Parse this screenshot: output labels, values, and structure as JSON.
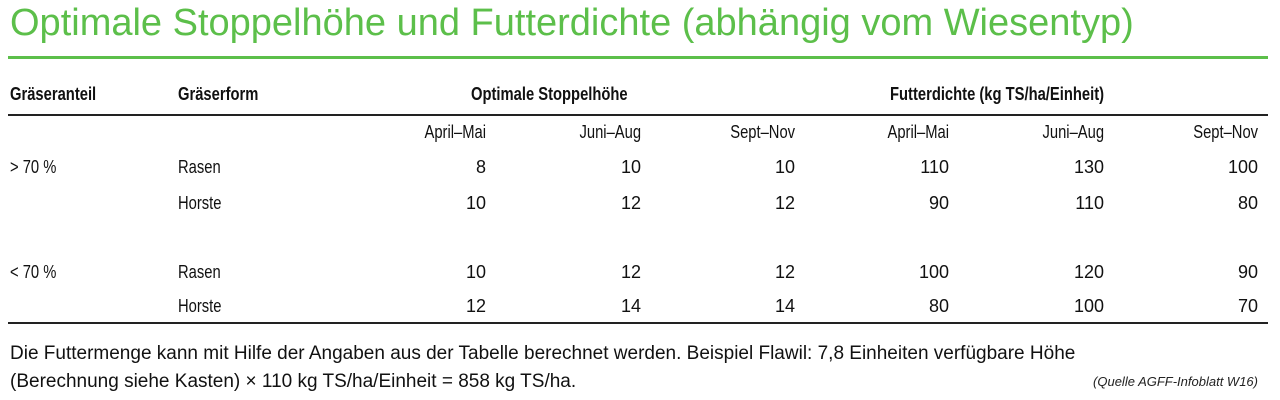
{
  "title": "Optimale Stoppelhöhe und Futterdichte (abhängig vom Wiesentyp)",
  "headers": {
    "col1": "Gräseranteil",
    "col2": "Gräserform",
    "group1": "Optimale Stoppelhöhe",
    "group2": "Futterdichte (kg TS/ha/Einheit)"
  },
  "subheaders": [
    "April–Mai",
    "Juni–Aug",
    "Sept–Nov",
    "April–Mai",
    "Juni–Aug",
    "Sept–Nov"
  ],
  "rows": [
    {
      "anteil": "> 70 %",
      "form": "Rasen",
      "values": [
        "8",
        "10",
        "10",
        "110",
        "130",
        "100"
      ]
    },
    {
      "anteil": "",
      "form": "Horste",
      "values": [
        "10",
        "12",
        "12",
        "90",
        "110",
        "80"
      ]
    },
    {
      "anteil": "< 70 %",
      "form": "Rasen",
      "values": [
        "10",
        "12",
        "12",
        "100",
        "120",
        "90"
      ]
    },
    {
      "anteil": "",
      "form": "Horste",
      "values": [
        "12",
        "14",
        "14",
        "80",
        "100",
        "70"
      ]
    }
  ],
  "footnote": {
    "line1": "Die Futtermenge kann mit Hilfe der Angaben aus der Tabelle berechnet werden. Beispiel Flawil: 7,8 Einheiten verfügbare Höhe",
    "line2": "(Berechnung siehe Kasten) × 110 kg TS/ha/Einheit = 858 kg TS/ha."
  },
  "source": "(Quelle AGFF-Infoblatt W16)",
  "colors": {
    "accent": "#5cbf4a"
  }
}
